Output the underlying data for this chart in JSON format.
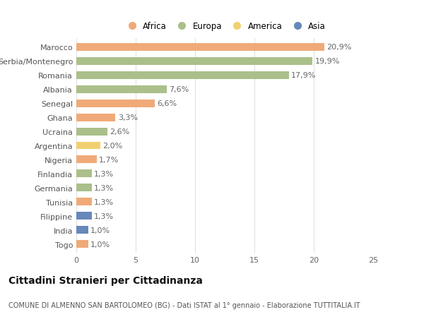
{
  "title": "Cittadini Stranieri per Cittadinanza",
  "subtitle": "COMUNE DI ALMENNO SAN BARTOLOMEO (BG) - Dati ISTAT al 1° gennaio - Elaborazione TUTTITALIA.IT",
  "categories": [
    "Marocco",
    "Serbia/Montenegro",
    "Romania",
    "Albania",
    "Senegal",
    "Ghana",
    "Ucraina",
    "Argentina",
    "Nigeria",
    "Finlandia",
    "Germania",
    "Tunisia",
    "Filippine",
    "India",
    "Togo"
  ],
  "values": [
    20.9,
    19.9,
    17.9,
    7.6,
    6.6,
    3.3,
    2.6,
    2.0,
    1.7,
    1.3,
    1.3,
    1.3,
    1.3,
    1.0,
    1.0
  ],
  "labels": [
    "20,9%",
    "19,9%",
    "17,9%",
    "7,6%",
    "6,6%",
    "3,3%",
    "2,6%",
    "2,0%",
    "1,7%",
    "1,3%",
    "1,3%",
    "1,3%",
    "1,3%",
    "1,0%",
    "1,0%"
  ],
  "continents": [
    "Africa",
    "Europa",
    "Europa",
    "Europa",
    "Africa",
    "Africa",
    "Europa",
    "America",
    "Africa",
    "Europa",
    "Europa",
    "Africa",
    "Asia",
    "Asia",
    "Africa"
  ],
  "colors": {
    "Africa": "#F0AA78",
    "Europa": "#AABF8A",
    "America": "#F0D070",
    "Asia": "#6688BB"
  },
  "legend_order": [
    "Africa",
    "Europa",
    "America",
    "Asia"
  ],
  "xlim": [
    0,
    25
  ],
  "xticks": [
    0,
    5,
    10,
    15,
    20,
    25
  ],
  "bar_height": 0.55,
  "background_color": "#ffffff",
  "grid_color": "#e0e0e0",
  "label_fontsize": 8,
  "tick_fontsize": 8,
  "title_fontsize": 10,
  "subtitle_fontsize": 7,
  "legend_fontsize": 8.5
}
